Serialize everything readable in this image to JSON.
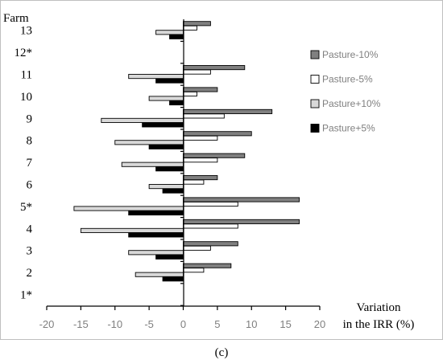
{
  "chart_data": {
    "type": "bar",
    "orientation": "horizontal",
    "ylabel": "Farm",
    "xlabel_lines": [
      "Variation",
      "in the IRR (%)"
    ],
    "caption": "(c)",
    "xlim": [
      -20,
      20
    ],
    "xticks": [
      -20,
      -15,
      -10,
      -5,
      0,
      5,
      10,
      15,
      20
    ],
    "grid": false,
    "legend_position": "right",
    "categories": [
      "13",
      "12*",
      "11",
      "10",
      "9",
      "8",
      "7",
      "6",
      "5*",
      "4",
      "3",
      "2",
      "1*"
    ],
    "series": [
      {
        "name": "Pasture-10%",
        "color": "#808080",
        "values": [
          4,
          0,
          9,
          5,
          13,
          10,
          9,
          5,
          17,
          17,
          8,
          7,
          0
        ]
      },
      {
        "name": "Pasture-5%",
        "color": "#ffffff",
        "values": [
          2,
          0,
          4,
          2,
          6,
          5,
          5,
          3,
          8,
          8,
          4,
          3,
          0
        ]
      },
      {
        "name": "Pasture+10%",
        "color": "#d9d9d9",
        "values": [
          -4,
          0,
          -8,
          -5,
          -12,
          -10,
          -9,
          -5,
          -16,
          -15,
          -8,
          -7,
          0
        ]
      },
      {
        "name": "Pasture+5%",
        "color": "#000000",
        "values": [
          -2,
          0,
          -4,
          -2,
          -6,
          -5,
          -4,
          -3,
          -8,
          -8,
          -4,
          -3,
          0
        ]
      }
    ]
  }
}
